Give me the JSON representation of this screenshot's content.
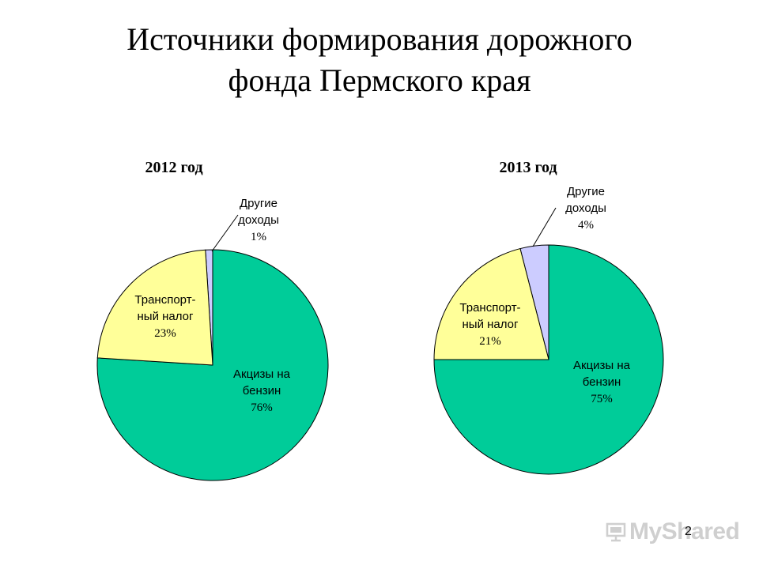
{
  "slide": {
    "title_line1": "Источники формирования дорожного",
    "title_line2": "фонда Пермского края",
    "page_number": "2",
    "watermark": "MyShared"
  },
  "colors": {
    "excise": "#00CC99",
    "transport": "#FFFF99",
    "other": "#CCCCFF"
  },
  "chart_data": [
    {
      "type": "pie",
      "title": "2012 год",
      "slices": [
        {
          "label_lines": [
            "Другие",
            "доходы"
          ],
          "value": 1,
          "pct_text": "1%",
          "color": "#CCCCFF"
        },
        {
          "label_lines": [
            "Акцизы на",
            "бензин"
          ],
          "value": 76,
          "pct_text": "76%",
          "color": "#00CC99"
        },
        {
          "label_lines": [
            "Транспорт-",
            "ный налог"
          ],
          "value": 23,
          "pct_text": "23%",
          "color": "#FFFF99"
        }
      ]
    },
    {
      "type": "pie",
      "title": "2013 год",
      "slices": [
        {
          "label_lines": [
            "Другие",
            "доходы"
          ],
          "value": 4,
          "pct_text": "4%",
          "color": "#CCCCFF"
        },
        {
          "label_lines": [
            "Акцизы на",
            "бензин"
          ],
          "value": 75,
          "pct_text": "75%",
          "color": "#00CC99"
        },
        {
          "label_lines": [
            "Транспорт-",
            "ный налог"
          ],
          "value": 21,
          "pct_text": "21%",
          "color": "#FFFF99"
        }
      ]
    }
  ]
}
